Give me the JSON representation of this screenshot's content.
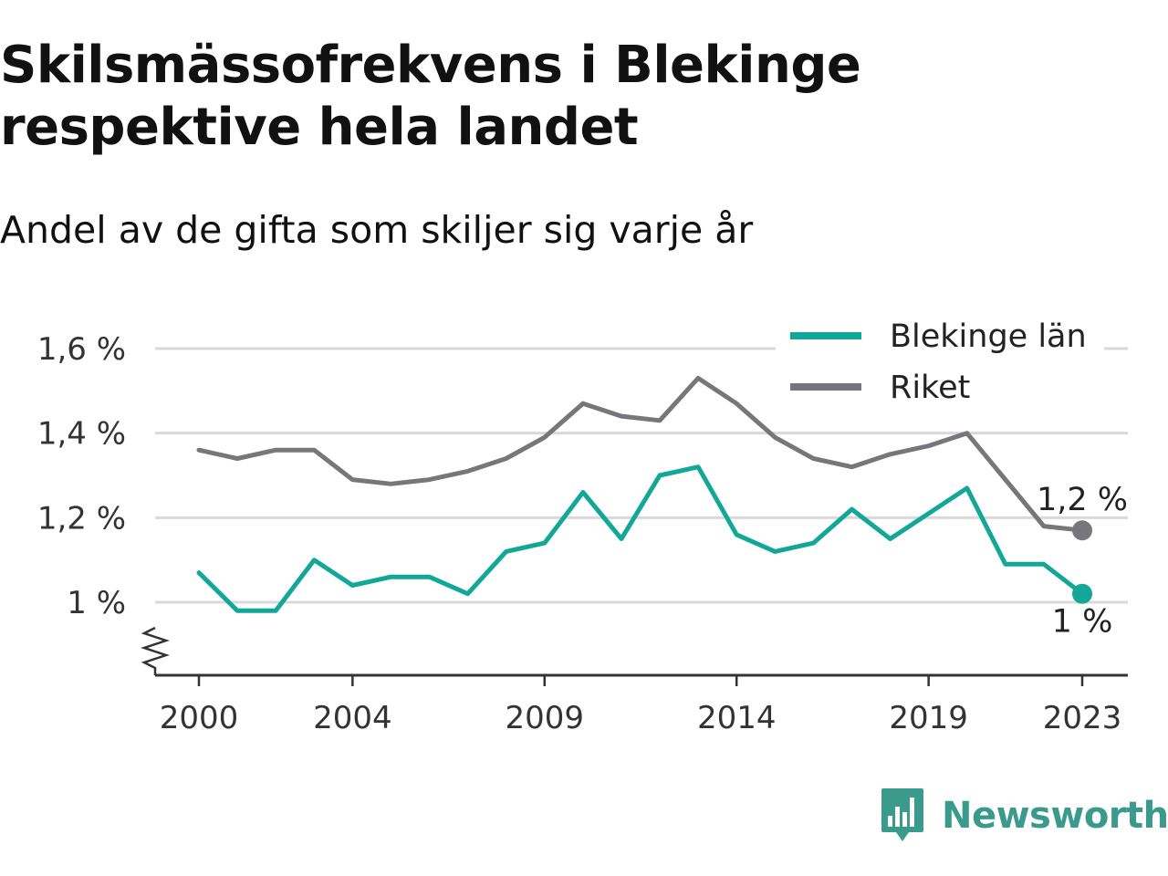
{
  "title": "Skilsmässofrekvens i Blekinge respektive hela landet",
  "subtitle": "Andel av de gifta som skiljer sig varje år",
  "brand": {
    "name": "Newsworthy",
    "logo_icon": "bar-chart-speech-bubble-icon",
    "color": "#3a9a8c"
  },
  "chart_data": {
    "type": "line",
    "x": [
      2000,
      2001,
      2002,
      2003,
      2004,
      2005,
      2006,
      2007,
      2008,
      2009,
      2010,
      2011,
      2012,
      2013,
      2014,
      2015,
      2016,
      2017,
      2018,
      2019,
      2020,
      2021,
      2022,
      2023
    ],
    "x_ticks": [
      2000,
      2004,
      2009,
      2014,
      2019,
      2023
    ],
    "x_tick_labels": [
      "2000",
      "2004",
      "2009",
      "2014",
      "2019",
      "2023"
    ],
    "xlim": [
      2000,
      2023
    ],
    "ylim": [
      0.83,
      1.6
    ],
    "y_ticks": [
      1.0,
      1.2,
      1.4,
      1.6
    ],
    "y_tick_labels": [
      "1 %",
      "1,2 %",
      "1,4 %",
      "1,6 %"
    ],
    "y_axis_break": true,
    "grid": true,
    "legend_position": "top-right",
    "series": [
      {
        "name": "Blekinge län",
        "color": "#12a797",
        "values": [
          1.07,
          0.98,
          0.98,
          1.1,
          1.04,
          1.06,
          1.06,
          1.02,
          1.12,
          1.14,
          1.26,
          1.15,
          1.3,
          1.32,
          1.16,
          1.12,
          1.14,
          1.22,
          1.15,
          1.21,
          1.27,
          1.09,
          1.09,
          1.02
        ],
        "end_label": "1 %"
      },
      {
        "name": "Riket",
        "color": "#77767b",
        "values": [
          1.36,
          1.34,
          1.36,
          1.36,
          1.29,
          1.28,
          1.29,
          1.31,
          1.34,
          1.39,
          1.47,
          1.44,
          1.43,
          1.53,
          1.47,
          1.39,
          1.34,
          1.32,
          1.35,
          1.37,
          1.4,
          1.29,
          1.18,
          1.17
        ],
        "end_label": "1,2 %"
      }
    ]
  }
}
